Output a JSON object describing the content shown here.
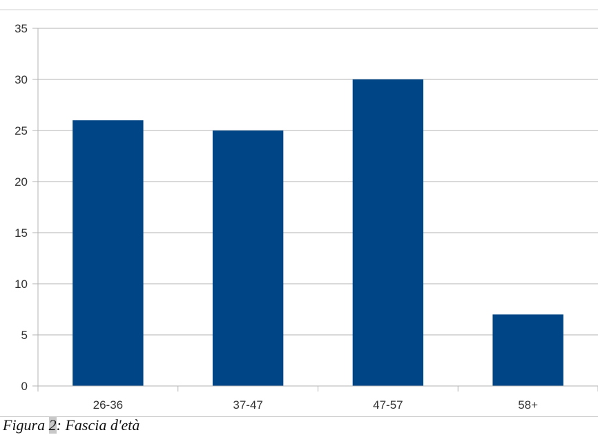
{
  "chart_data": {
    "type": "bar",
    "categories": [
      "26-36",
      "37-47",
      "47-57",
      "58+"
    ],
    "values": [
      26,
      25,
      30,
      7
    ],
    "title": "",
    "xlabel": "",
    "ylabel": "",
    "ylim": [
      0,
      35
    ],
    "yticks": [
      "0",
      "5",
      "10",
      "15",
      "20",
      "25",
      "30",
      "35"
    ],
    "grid": true,
    "legend": "none",
    "bar_color": "#004586",
    "grid_color": "#b3b3b3"
  },
  "caption": {
    "prefix": "Figura ",
    "number": "2",
    "suffix": ": Fascia d'età"
  }
}
